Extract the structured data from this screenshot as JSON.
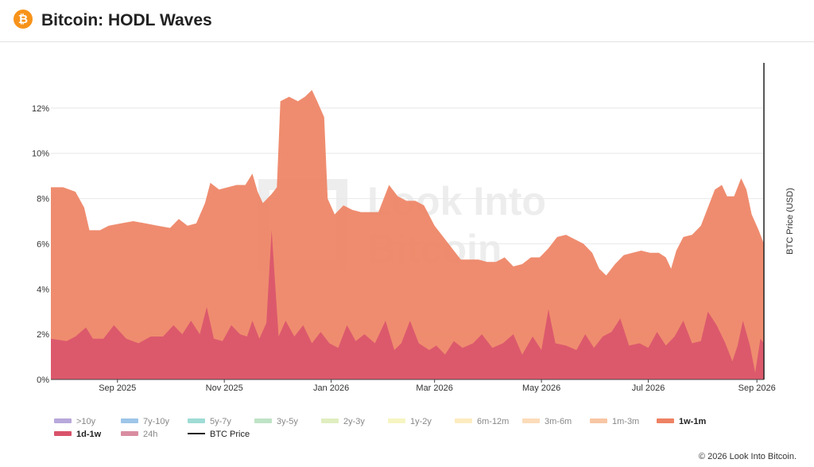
{
  "header": {
    "title": "Bitcoin: HODL Waves",
    "logo_icon": "bitcoin-icon",
    "logo_glyph": "₿"
  },
  "watermark": {
    "line1": "Look Into",
    "line2": "Bitcoin"
  },
  "copyright": "© 2026 Look Into Bitcoin.",
  "chart_data": {
    "type": "area",
    "stacked": true,
    "x_axis": {
      "type": "date",
      "range": [
        "2025-07-25",
        "2026-09-05"
      ],
      "ticks": [
        {
          "date": "2025-09-01",
          "label": "Sep 2025"
        },
        {
          "date": "2025-11-01",
          "label": "Nov 2025"
        },
        {
          "date": "2026-01-01",
          "label": "Jan 2026"
        },
        {
          "date": "2026-03-01",
          "label": "Mar 2026"
        },
        {
          "date": "2026-05-01",
          "label": "May 2026"
        },
        {
          "date": "2026-07-01",
          "label": "Jul 2026"
        },
        {
          "date": "2026-09-01",
          "label": "Sep 2026"
        }
      ]
    },
    "y_axis": {
      "range": [
        0,
        14
      ],
      "ticks": [
        0,
        2,
        4,
        6,
        8,
        10,
        12
      ],
      "tick_suffix": "%",
      "grid": true
    },
    "y2_axis": {
      "label": "BTC Price (USD)",
      "position": "right"
    },
    "legend": {
      "placement": "bottom",
      "items": [
        {
          "name": ">10y",
          "color": "#b8a8db"
        },
        {
          "name": "7y-10y",
          "color": "#9ec5e8"
        },
        {
          "name": "5y-7y",
          "color": "#9fdcd5"
        },
        {
          "name": "3y-5y",
          "color": "#bfe3c6"
        },
        {
          "name": "2y-3y",
          "color": "#dfeec0"
        },
        {
          "name": "1y-2y",
          "color": "#f6f5c2"
        },
        {
          "name": "6m-12m",
          "color": "#fdecc0"
        },
        {
          "name": "3m-6m",
          "color": "#fbdcba"
        },
        {
          "name": "1m-3m",
          "color": "#f8c6a4"
        },
        {
          "name": "1w-1m",
          "color": "#ee8263"
        },
        {
          "name": "1d-1w",
          "color": "#d9536b"
        },
        {
          "name": "24h",
          "color": "#d98da0"
        },
        {
          "name": "BTC Price",
          "color": "#222222"
        }
      ]
    },
    "series": [
      {
        "name": "1w-1m",
        "color": "#ee8263",
        "points": [
          [
            "2025-07-25",
            8.5
          ],
          [
            "2025-08-01",
            8.5
          ],
          [
            "2025-08-08",
            8.3
          ],
          [
            "2025-08-13",
            7.6
          ],
          [
            "2025-08-16",
            6.6
          ],
          [
            "2025-08-22",
            6.6
          ],
          [
            "2025-08-27",
            6.8
          ],
          [
            "2025-09-03",
            6.9
          ],
          [
            "2025-09-10",
            7.0
          ],
          [
            "2025-09-17",
            6.9
          ],
          [
            "2025-09-24",
            6.8
          ],
          [
            "2025-10-01",
            6.7
          ],
          [
            "2025-10-06",
            7.1
          ],
          [
            "2025-10-11",
            6.8
          ],
          [
            "2025-10-16",
            6.9
          ],
          [
            "2025-10-21",
            7.8
          ],
          [
            "2025-10-24",
            8.7
          ],
          [
            "2025-10-29",
            8.4
          ],
          [
            "2025-11-03",
            8.5
          ],
          [
            "2025-11-08",
            8.6
          ],
          [
            "2025-11-13",
            8.6
          ],
          [
            "2025-11-17",
            9.1
          ],
          [
            "2025-11-20",
            8.3
          ],
          [
            "2025-11-23",
            7.8
          ],
          [
            "2025-11-28",
            8.2
          ],
          [
            "2025-12-01",
            8.5
          ],
          [
            "2025-12-03",
            12.3
          ],
          [
            "2025-12-08",
            12.5
          ],
          [
            "2025-12-13",
            12.3
          ],
          [
            "2025-12-17",
            12.5
          ],
          [
            "2025-12-21",
            12.8
          ],
          [
            "2025-12-24",
            12.3
          ],
          [
            "2025-12-28",
            11.6
          ],
          [
            "2025-12-30",
            8.0
          ],
          [
            "2026-01-03",
            7.3
          ],
          [
            "2026-01-08",
            7.7
          ],
          [
            "2026-01-13",
            7.5
          ],
          [
            "2026-01-18",
            7.4
          ],
          [
            "2026-01-23",
            7.4
          ],
          [
            "2026-01-28",
            7.4
          ],
          [
            "2026-02-03",
            8.6
          ],
          [
            "2026-02-08",
            8.1
          ],
          [
            "2026-02-13",
            7.9
          ],
          [
            "2026-02-18",
            7.9
          ],
          [
            "2026-02-23",
            7.7
          ],
          [
            "2026-03-01",
            6.8
          ],
          [
            "2026-03-06",
            6.3
          ],
          [
            "2026-03-11",
            5.8
          ],
          [
            "2026-03-16",
            5.3
          ],
          [
            "2026-03-21",
            5.3
          ],
          [
            "2026-03-26",
            5.3
          ],
          [
            "2026-03-31",
            5.2
          ],
          [
            "2026-04-05",
            5.2
          ],
          [
            "2026-04-10",
            5.4
          ],
          [
            "2026-04-15",
            5.0
          ],
          [
            "2026-04-20",
            5.1
          ],
          [
            "2026-04-25",
            5.4
          ],
          [
            "2026-04-30",
            5.4
          ],
          [
            "2026-05-05",
            5.8
          ],
          [
            "2026-05-10",
            6.3
          ],
          [
            "2026-05-15",
            6.4
          ],
          [
            "2026-05-20",
            6.2
          ],
          [
            "2026-05-25",
            6.0
          ],
          [
            "2026-05-30",
            5.6
          ],
          [
            "2026-06-03",
            4.9
          ],
          [
            "2026-06-07",
            4.6
          ],
          [
            "2026-06-12",
            5.1
          ],
          [
            "2026-06-17",
            5.5
          ],
          [
            "2026-06-22",
            5.6
          ],
          [
            "2026-06-27",
            5.7
          ],
          [
            "2026-07-02",
            5.6
          ],
          [
            "2026-07-07",
            5.6
          ],
          [
            "2026-07-11",
            5.4
          ],
          [
            "2026-07-14",
            4.9
          ],
          [
            "2026-07-17",
            5.7
          ],
          [
            "2026-07-21",
            6.3
          ],
          [
            "2026-07-26",
            6.4
          ],
          [
            "2026-07-31",
            6.8
          ],
          [
            "2026-08-03",
            7.4
          ],
          [
            "2026-08-08",
            8.4
          ],
          [
            "2026-08-12",
            8.6
          ],
          [
            "2026-08-15",
            8.1
          ],
          [
            "2026-08-19",
            8.1
          ],
          [
            "2026-08-23",
            8.9
          ],
          [
            "2026-08-26",
            8.4
          ],
          [
            "2026-08-29",
            7.3
          ],
          [
            "2026-09-02",
            6.6
          ],
          [
            "2026-09-05",
            6.0
          ]
        ]
      },
      {
        "name": "1d-1w",
        "color": "#d9536b",
        "points": [
          [
            "2025-07-25",
            1.8
          ],
          [
            "2025-08-03",
            1.7
          ],
          [
            "2025-08-08",
            1.9
          ],
          [
            "2025-08-14",
            2.3
          ],
          [
            "2025-08-18",
            1.8
          ],
          [
            "2025-08-24",
            1.8
          ],
          [
            "2025-08-30",
            2.4
          ],
          [
            "2025-09-06",
            1.8
          ],
          [
            "2025-09-13",
            1.6
          ],
          [
            "2025-09-20",
            1.9
          ],
          [
            "2025-09-27",
            1.9
          ],
          [
            "2025-10-03",
            2.4
          ],
          [
            "2025-10-08",
            2.0
          ],
          [
            "2025-10-13",
            2.6
          ],
          [
            "2025-10-18",
            2.0
          ],
          [
            "2025-10-22",
            3.2
          ],
          [
            "2025-10-26",
            1.8
          ],
          [
            "2025-10-31",
            1.7
          ],
          [
            "2025-11-05",
            2.4
          ],
          [
            "2025-11-10",
            2.0
          ],
          [
            "2025-11-14",
            1.9
          ],
          [
            "2025-11-17",
            2.6
          ],
          [
            "2025-11-21",
            1.8
          ],
          [
            "2025-11-25",
            2.5
          ],
          [
            "2025-11-28",
            6.6
          ],
          [
            "2025-12-02",
            1.9
          ],
          [
            "2025-12-06",
            2.6
          ],
          [
            "2025-12-11",
            1.9
          ],
          [
            "2025-12-16",
            2.4
          ],
          [
            "2025-12-21",
            1.6
          ],
          [
            "2025-12-26",
            2.1
          ],
          [
            "2025-12-31",
            1.6
          ],
          [
            "2026-01-05",
            1.4
          ],
          [
            "2026-01-10",
            2.4
          ],
          [
            "2026-01-15",
            1.7
          ],
          [
            "2026-01-20",
            2.0
          ],
          [
            "2026-01-26",
            1.6
          ],
          [
            "2026-02-01",
            2.6
          ],
          [
            "2026-02-06",
            1.3
          ],
          [
            "2026-02-10",
            1.6
          ],
          [
            "2026-02-15",
            2.6
          ],
          [
            "2026-02-20",
            1.6
          ],
          [
            "2026-02-26",
            1.3
          ],
          [
            "2026-03-02",
            1.5
          ],
          [
            "2026-03-07",
            1.1
          ],
          [
            "2026-03-12",
            1.7
          ],
          [
            "2026-03-17",
            1.4
          ],
          [
            "2026-03-23",
            1.6
          ],
          [
            "2026-03-28",
            2.0
          ],
          [
            "2026-04-03",
            1.4
          ],
          [
            "2026-04-09",
            1.6
          ],
          [
            "2026-04-15",
            2.0
          ],
          [
            "2026-04-20",
            1.1
          ],
          [
            "2026-04-26",
            1.9
          ],
          [
            "2026-05-01",
            1.3
          ],
          [
            "2026-05-05",
            3.1
          ],
          [
            "2026-05-09",
            1.6
          ],
          [
            "2026-05-15",
            1.5
          ],
          [
            "2026-05-21",
            1.3
          ],
          [
            "2026-05-26",
            2.0
          ],
          [
            "2026-05-31",
            1.4
          ],
          [
            "2026-06-05",
            1.9
          ],
          [
            "2026-06-10",
            2.1
          ],
          [
            "2026-06-15",
            2.7
          ],
          [
            "2026-06-20",
            1.5
          ],
          [
            "2026-06-26",
            1.6
          ],
          [
            "2026-07-01",
            1.4
          ],
          [
            "2026-07-06",
            2.1
          ],
          [
            "2026-07-11",
            1.5
          ],
          [
            "2026-07-16",
            1.9
          ],
          [
            "2026-07-21",
            2.6
          ],
          [
            "2026-07-26",
            1.6
          ],
          [
            "2026-07-31",
            1.7
          ],
          [
            "2026-08-04",
            3.0
          ],
          [
            "2026-08-09",
            2.4
          ],
          [
            "2026-08-14",
            1.6
          ],
          [
            "2026-08-18",
            0.8
          ],
          [
            "2026-08-21",
            1.5
          ],
          [
            "2026-08-24",
            2.6
          ],
          [
            "2026-08-28",
            1.5
          ],
          [
            "2026-08-31",
            0.3
          ],
          [
            "2026-09-03",
            1.8
          ],
          [
            "2026-09-05",
            1.6
          ]
        ]
      }
    ]
  }
}
